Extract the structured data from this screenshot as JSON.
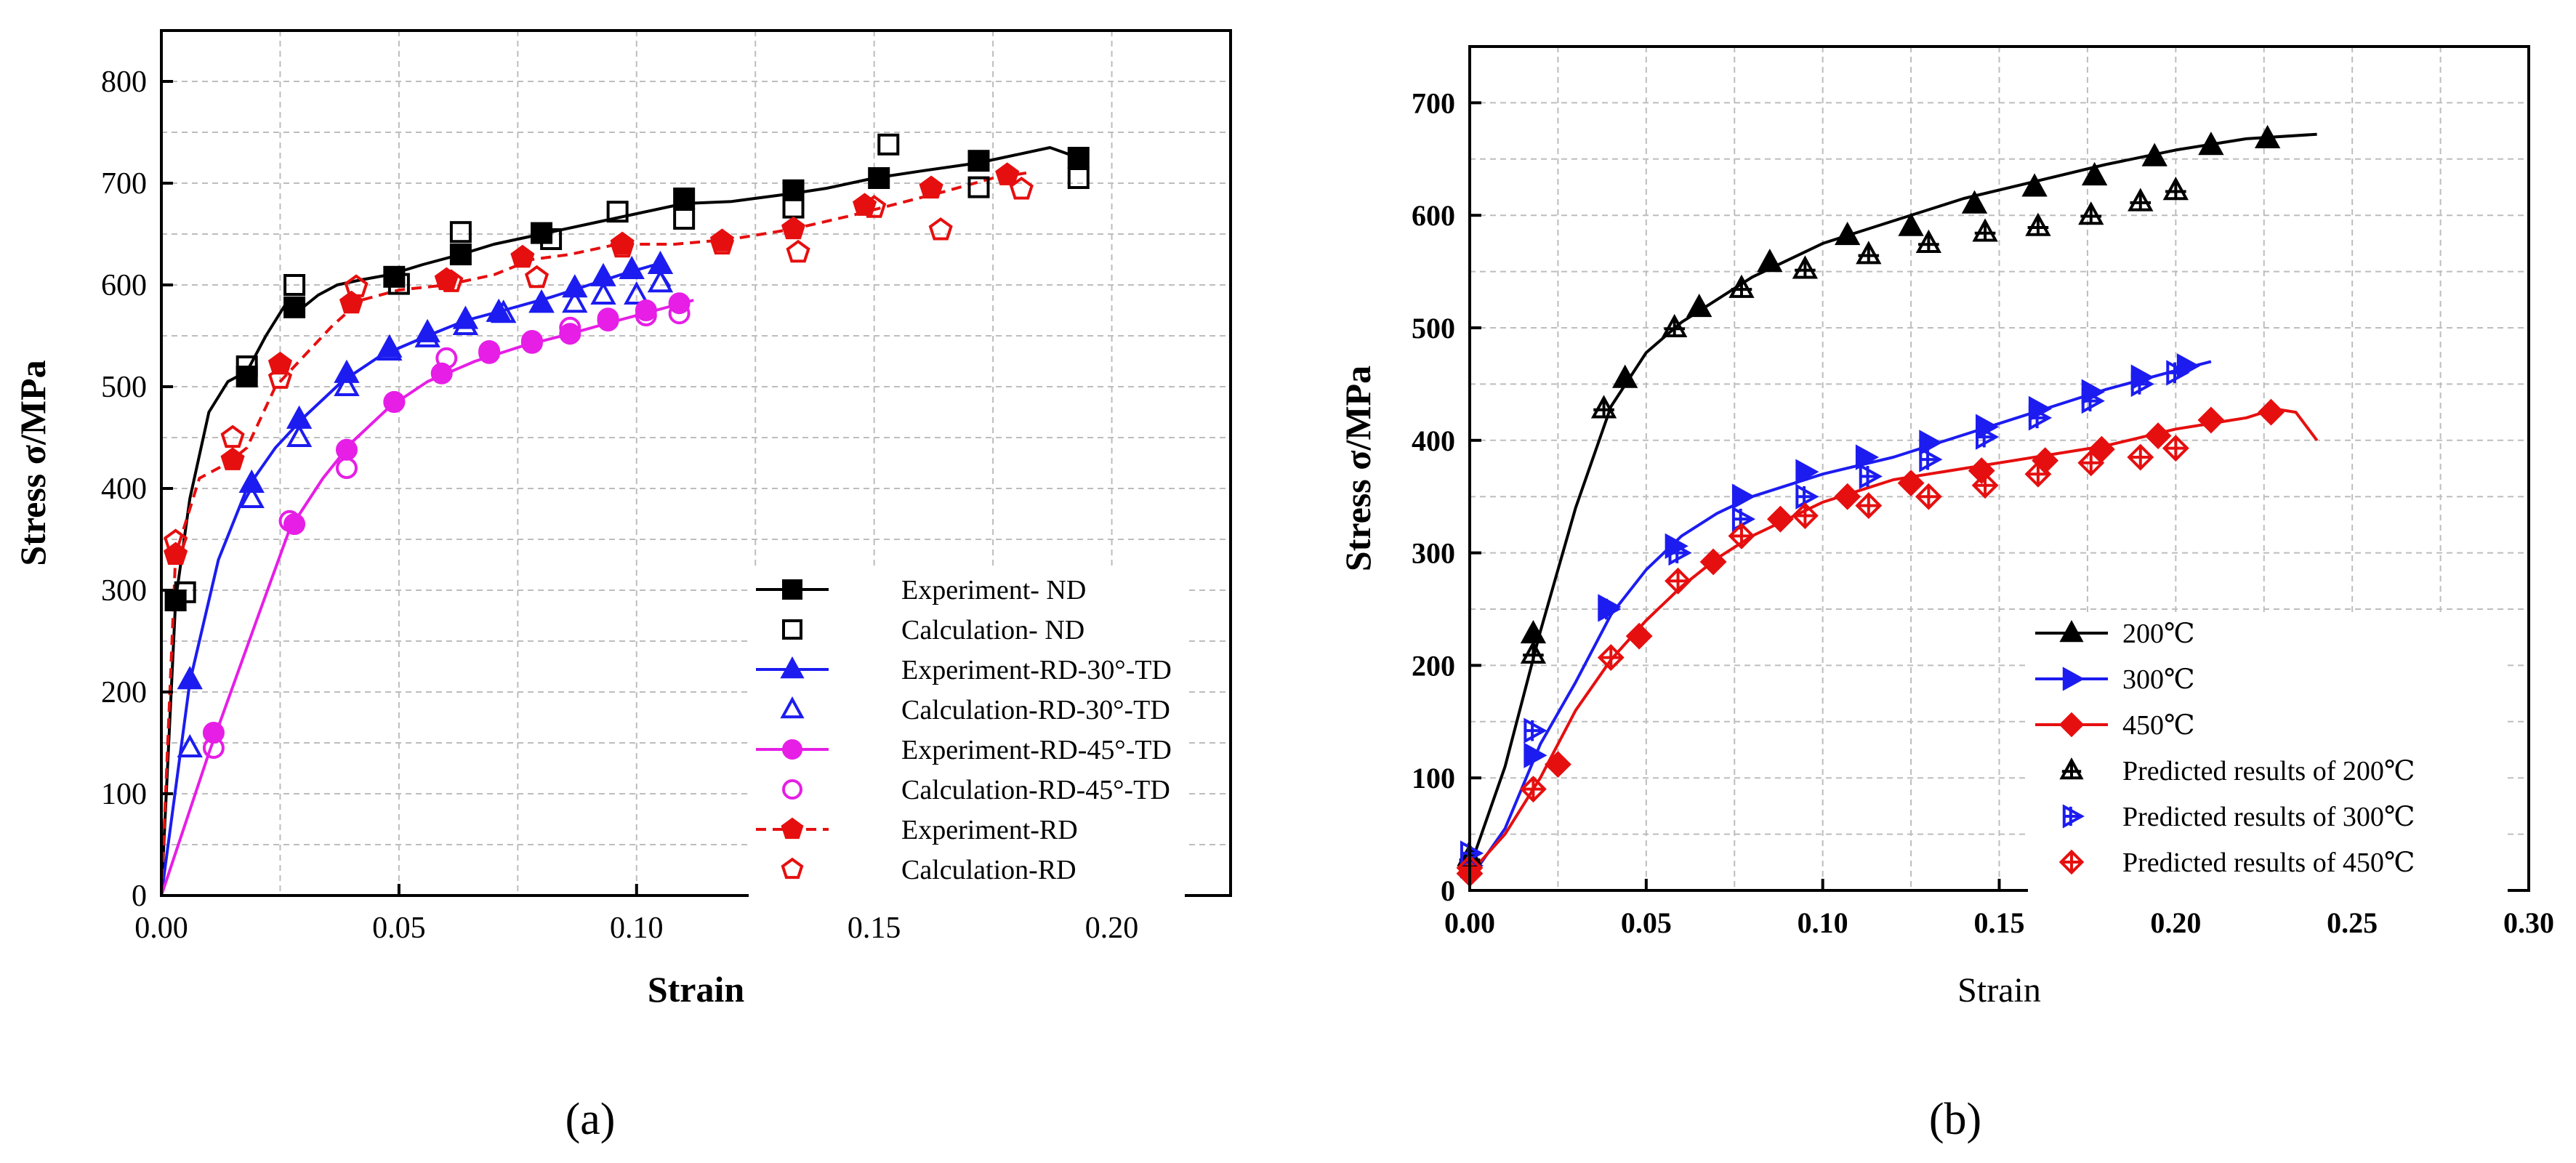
{
  "colors": {
    "black": "#000000",
    "blue": "#1c1cf0",
    "magenta": "#e61ee6",
    "red": "#e60f0f",
    "grid": "#bdbdbd"
  },
  "chart_data": [
    {
      "id": "a",
      "type": "line",
      "panel_label": "(a)",
      "xlabel": "Strain",
      "ylabel": "Stress σ/MPa",
      "xlim": [
        0,
        0.225
      ],
      "ylim": [
        0,
        850
      ],
      "xticks": [
        "0.00",
        "0.05",
        "0.10",
        "0.15",
        "0.20"
      ],
      "xtick_values": [
        0,
        0.05,
        0.1,
        0.15,
        0.2
      ],
      "yticks": [
        "0",
        "100",
        "200",
        "300",
        "400",
        "500",
        "600",
        "700",
        "800"
      ],
      "ytick_values": [
        0,
        100,
        200,
        300,
        400,
        500,
        600,
        700,
        800
      ],
      "grid": true,
      "legend_position": "bottom-right",
      "series": [
        {
          "name": "Experiment- ND",
          "color": "#000000",
          "line": "solid",
          "marker": "square",
          "filled": true,
          "x": [
            0.0,
            0.003,
            0.006,
            0.01,
            0.014,
            0.018,
            0.022,
            0.026,
            0.029,
            0.033,
            0.037,
            0.042,
            0.048,
            0.055,
            0.063,
            0.07,
            0.08,
            0.09,
            0.1,
            0.11,
            0.12,
            0.133,
            0.14,
            0.15,
            0.16,
            0.172,
            0.18,
            0.187,
            0.193
          ],
          "y": [
            0,
            290,
            390,
            475,
            505,
            515,
            550,
            580,
            575,
            590,
            600,
            605,
            610,
            620,
            630,
            640,
            650,
            660,
            670,
            680,
            682,
            690,
            695,
            705,
            712,
            720,
            728,
            735,
            725
          ],
          "markers_x": [
            0.003,
            0.018,
            0.028,
            0.049,
            0.063,
            0.08,
            0.11,
            0.133,
            0.151,
            0.172,
            0.193
          ],
          "markers_y": [
            290,
            510,
            578,
            608,
            630,
            651,
            685,
            693,
            705,
            722,
            725
          ]
        },
        {
          "name": "Calculation- ND",
          "color": "#000000",
          "line": "none",
          "marker": "square",
          "filled": false,
          "markers_x": [
            0.005,
            0.018,
            0.028,
            0.05,
            0.063,
            0.082,
            0.096,
            0.11,
            0.133,
            0.153,
            0.172,
            0.193
          ],
          "markers_y": [
            298,
            520,
            600,
            601,
            652,
            645,
            672,
            665,
            676,
            738,
            696,
            705
          ]
        },
        {
          "name": "Experiment-RD-30°-TD",
          "color": "#1c1cf0",
          "line": "solid",
          "marker": "triangle",
          "filled": true,
          "x": [
            0.0,
            0.006,
            0.012,
            0.018,
            0.024,
            0.03,
            0.038,
            0.046,
            0.056,
            0.064,
            0.072,
            0.082,
            0.09,
            0.098,
            0.104,
            0.107
          ],
          "y": [
            0,
            210,
            330,
            400,
            440,
            470,
            505,
            530,
            550,
            565,
            575,
            588,
            600,
            612,
            620,
            598
          ],
          "markers_x": [
            0.006,
            0.019,
            0.029,
            0.039,
            0.048,
            0.056,
            0.064,
            0.071,
            0.08,
            0.087,
            0.093,
            0.099,
            0.105
          ],
          "markers_y": [
            212,
            405,
            468,
            513,
            538,
            553,
            566,
            573,
            582,
            597,
            608,
            615,
            620
          ]
        },
        {
          "name": "Calculation-RD-30°-TD",
          "color": "#1c1cf0",
          "line": "none",
          "marker": "triangle",
          "filled": false,
          "markers_x": [
            0.006,
            0.019,
            0.029,
            0.039,
            0.048,
            0.056,
            0.064,
            0.072,
            0.08,
            0.087,
            0.093,
            0.1,
            0.105
          ],
          "markers_y": [
            145,
            390,
            450,
            500,
            535,
            548,
            560,
            572,
            582,
            582,
            590,
            590,
            602
          ]
        },
        {
          "name": "Experiment-RD-45°-TD",
          "color": "#e61ee6",
          "line": "solid",
          "marker": "circle",
          "filled": true,
          "x": [
            0.0,
            0.01,
            0.02,
            0.027,
            0.034,
            0.04,
            0.048,
            0.056,
            0.066,
            0.076,
            0.086,
            0.096,
            0.104,
            0.112
          ],
          "y": [
            0,
            140,
            270,
            360,
            410,
            445,
            480,
            505,
            525,
            540,
            552,
            565,
            575,
            585
          ],
          "markers_x": [
            0.011,
            0.028,
            0.039,
            0.049,
            0.059,
            0.069,
            0.078,
            0.086,
            0.094,
            0.102,
            0.109
          ],
          "markers_y": [
            160,
            365,
            438,
            485,
            513,
            533,
            543,
            552,
            565,
            575,
            582
          ]
        },
        {
          "name": "Calculation-RD-45°-TD",
          "color": "#e61ee6",
          "line": "none",
          "marker": "circle",
          "filled": false,
          "markers_x": [
            0.011,
            0.027,
            0.039,
            0.049,
            0.06,
            0.069,
            0.078,
            0.086,
            0.094,
            0.102,
            0.109
          ],
          "markers_y": [
            145,
            368,
            420,
            485,
            528,
            535,
            545,
            558,
            567,
            570,
            572
          ]
        },
        {
          "name": "Experiment-RD",
          "color": "#e60f0f",
          "line": "dashed",
          "marker": "pentagon",
          "filled": true,
          "x": [
            0.0,
            0.003,
            0.008,
            0.014,
            0.018,
            0.024,
            0.03,
            0.036,
            0.042,
            0.05,
            0.06,
            0.07,
            0.078,
            0.086,
            0.096,
            0.108,
            0.12,
            0.133,
            0.145,
            0.155,
            0.165,
            0.175,
            0.182
          ],
          "y": [
            0,
            335,
            410,
            425,
            440,
            500,
            530,
            560,
            585,
            595,
            600,
            610,
            625,
            630,
            640,
            640,
            645,
            655,
            668,
            680,
            692,
            705,
            710
          ],
          "markers_x": [
            0.003,
            0.015,
            0.025,
            0.04,
            0.06,
            0.076,
            0.097,
            0.118,
            0.133,
            0.148,
            0.162,
            0.178
          ],
          "markers_y": [
            335,
            428,
            522,
            582,
            605,
            627,
            640,
            643,
            655,
            678,
            695,
            708
          ]
        },
        {
          "name": "Calculation-RD",
          "color": "#e60f0f",
          "line": "none",
          "marker": "pentagon",
          "filled": false,
          "markers_x": [
            0.003,
            0.015,
            0.025,
            0.041,
            0.061,
            0.079,
            0.097,
            0.118,
            0.134,
            0.15,
            0.164,
            0.181
          ],
          "markers_y": [
            348,
            450,
            508,
            598,
            603,
            607,
            637,
            640,
            632,
            676,
            654,
            694
          ]
        }
      ]
    },
    {
      "id": "b",
      "type": "line",
      "panel_label": "(b)",
      "xlabel": "Strain",
      "ylabel": "Stress σ/MPa",
      "xlim": [
        0,
        0.3
      ],
      "ylim": [
        0,
        750
      ],
      "xticks": [
        "0.00",
        "0.05",
        "0.10",
        "0.15",
        "0.20",
        "0.25",
        "0.30"
      ],
      "xtick_values": [
        0,
        0.05,
        0.1,
        0.15,
        0.2,
        0.25,
        0.3
      ],
      "yticks": [
        "0",
        "100",
        "200",
        "300",
        "400",
        "500",
        "600",
        "700"
      ],
      "ytick_values": [
        0,
        100,
        200,
        300,
        400,
        500,
        600,
        700
      ],
      "grid": true,
      "legend_position": "bottom-right",
      "series": [
        {
          "name": "200℃",
          "color": "#000000",
          "line": "solid",
          "marker": "triangle-up",
          "filled": true,
          "x": [
            0.0,
            0.01,
            0.02,
            0.03,
            0.04,
            0.05,
            0.06,
            0.07,
            0.08,
            0.1,
            0.12,
            0.14,
            0.16,
            0.18,
            0.2,
            0.22,
            0.24
          ],
          "y": [
            20,
            110,
            230,
            340,
            430,
            478,
            505,
            525,
            545,
            575,
            595,
            615,
            630,
            645,
            658,
            668,
            672
          ],
          "markers_x": [
            0.0,
            0.018,
            0.044,
            0.065,
            0.085,
            0.107,
            0.125,
            0.143,
            0.16,
            0.177,
            0.194,
            0.21,
            0.226
          ],
          "markers_y": [
            30,
            228,
            455,
            518,
            558,
            582,
            590,
            610,
            625,
            635,
            652,
            662,
            668
          ]
        },
        {
          "name": "300℃",
          "color": "#1c1cf0",
          "line": "solid",
          "marker": "triangle-right",
          "filled": true,
          "x": [
            0.0,
            0.01,
            0.02,
            0.03,
            0.04,
            0.05,
            0.06,
            0.07,
            0.08,
            0.1,
            0.12,
            0.14,
            0.16,
            0.18,
            0.2,
            0.21
          ],
          "y": [
            10,
            55,
            130,
            185,
            245,
            285,
            315,
            335,
            350,
            370,
            385,
            405,
            425,
            445,
            462,
            470
          ],
          "markers_x": [
            0.0,
            0.018,
            0.039,
            0.058,
            0.077,
            0.095,
            0.112,
            0.13,
            0.146,
            0.161,
            0.176,
            0.19,
            0.203
          ],
          "markers_y": [
            22,
            120,
            252,
            306,
            350,
            372,
            385,
            398,
            412,
            428,
            443,
            456,
            466
          ]
        },
        {
          "name": "450℃",
          "color": "#e60f0f",
          "line": "solid",
          "marker": "diamond",
          "filled": true,
          "x": [
            0.0,
            0.01,
            0.02,
            0.03,
            0.04,
            0.05,
            0.06,
            0.07,
            0.08,
            0.1,
            0.12,
            0.14,
            0.16,
            0.18,
            0.2,
            0.22,
            0.228,
            0.234,
            0.24
          ],
          "y": [
            15,
            50,
            100,
            160,
            205,
            240,
            270,
            295,
            315,
            345,
            365,
            375,
            385,
            395,
            410,
            420,
            428,
            425,
            400
          ],
          "markers_x": [
            0.0,
            0.025,
            0.048,
            0.069,
            0.088,
            0.107,
            0.125,
            0.145,
            0.163,
            0.179,
            0.195,
            0.21,
            0.227
          ],
          "markers_y": [
            15,
            112,
            226,
            292,
            330,
            350,
            362,
            373,
            382,
            392,
            404,
            418,
            425
          ]
        },
        {
          "name": "Predicted results of 200℃",
          "color": "#000000",
          "line": "none",
          "marker": "triangle-up-cross",
          "filled": false,
          "markers_x": [
            0.0,
            0.018,
            0.038,
            0.058,
            0.077,
            0.095,
            0.113,
            0.13,
            0.146,
            0.161,
            0.176,
            0.19,
            0.2
          ],
          "markers_y": [
            28,
            210,
            428,
            500,
            535,
            552,
            565,
            575,
            585,
            590,
            600,
            612,
            622
          ]
        },
        {
          "name": "Predicted results of 300℃",
          "color": "#1c1cf0",
          "line": "none",
          "marker": "triangle-right-cross",
          "filled": false,
          "markers_x": [
            0.0,
            0.018,
            0.039,
            0.059,
            0.077,
            0.095,
            0.113,
            0.13,
            0.146,
            0.161,
            0.176,
            0.19,
            0.2
          ],
          "markers_y": [
            33,
            142,
            250,
            300,
            330,
            350,
            368,
            383,
            403,
            420,
            435,
            450,
            460
          ]
        },
        {
          "name": "Predicted results of 450℃",
          "color": "#e60f0f",
          "line": "none",
          "marker": "diamond-cross",
          "filled": false,
          "markers_x": [
            0.0,
            0.018,
            0.04,
            0.059,
            0.077,
            0.095,
            0.113,
            0.13,
            0.146,
            0.161,
            0.176,
            0.19,
            0.2
          ],
          "markers_y": [
            20,
            90,
            207,
            275,
            315,
            333,
            342,
            350,
            360,
            370,
            380,
            385,
            393
          ]
        }
      ]
    }
  ]
}
